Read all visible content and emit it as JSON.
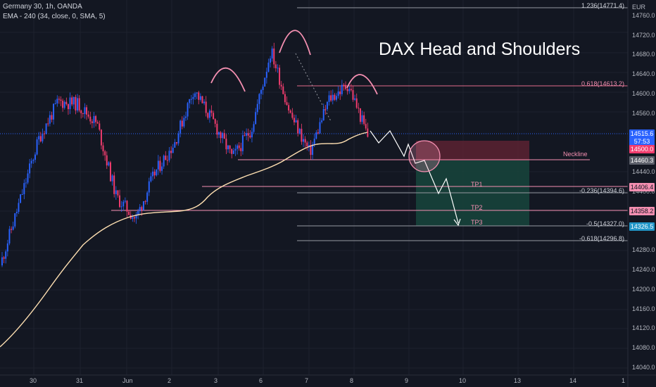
{
  "header": {
    "symbol_line": "Germany 30, 1h, OANDA",
    "indicator_line": "EMA - 240 (34, close, 0, SMA, 5)"
  },
  "overlay_title": "DAX Head and Shoulders",
  "currency": "EUR",
  "colors": {
    "background": "#131722",
    "bull": "#2962ff",
    "bear": "#f23c6e",
    "ema": "#ffe0b2",
    "pink": "#f48fb1",
    "stop_zone": "#5c2231",
    "target_zone": "#17423b",
    "last_price": "#2962ff",
    "tp3_badge": "#2196c8"
  },
  "labels": {
    "neckline": "Neckline",
    "tp1": "TP1",
    "tp2": "TP2",
    "tp3": "TP3"
  },
  "fib_levels": {
    "f1236": "1.236(14771.4)",
    "f0618": "0.618(14613.2)",
    "fm0236": "-0.236(14394.6)",
    "fm05": "-0.5(14327.0)",
    "fm0618": "-0.618(14296.8)"
  },
  "price_badges": {
    "last_price": "14515.6",
    "countdown": "57:53",
    "b14500": "14500.0",
    "b14460": "14460.3",
    "b14406": "14406.4",
    "b14358": "14358.2",
    "b14326": "14326.5"
  },
  "chart_data": {
    "type": "candlestick",
    "title": "",
    "y_ticks": [
      14760,
      14720,
      14680,
      14640,
      14600,
      14560,
      14440,
      14400,
      14360,
      14280,
      14240,
      14200,
      14160,
      14120,
      14080,
      14040
    ],
    "x_ticks": [
      "30",
      "31",
      "Jun",
      "2",
      "3",
      "6",
      "7",
      "8",
      "9",
      "10",
      "13",
      "14",
      "1"
    ],
    "ylim": [
      14030,
      14790
    ],
    "series": [
      {
        "type": "candlestick",
        "approx_close_path": [
          14250,
          14380,
          14510,
          14585,
          14580,
          14540,
          14390,
          14345,
          14440,
          14500,
          14610,
          14545,
          14470,
          14530,
          14690,
          14560,
          14480,
          14590,
          14620,
          14515
        ]
      },
      {
        "type": "line",
        "name": "EMA - 240",
        "approx_path": [
          14060,
          14190,
          14270,
          14315,
          14340,
          14350,
          14360,
          14380,
          14400,
          14440,
          14470,
          14485,
          14500,
          14515
        ]
      }
    ],
    "projection_path": [
      14515,
      14490,
      14525,
      14475,
      14495,
      14430,
      14460,
      14395,
      14435,
      14327
    ]
  }
}
